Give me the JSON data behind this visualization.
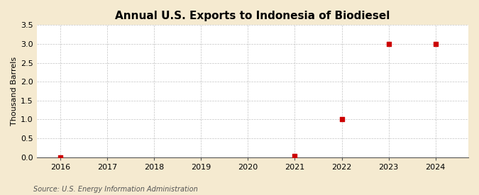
{
  "title": "Annual U.S. Exports to Indonesia of Biodiesel",
  "ylabel": "Thousand Barrels",
  "source": "Source: U.S. Energy Information Administration",
  "x": [
    2016,
    2021,
    2022,
    2023,
    2024
  ],
  "y": [
    0.0,
    0.026,
    1.0,
    3.0,
    3.0
  ],
  "xlim": [
    2015.5,
    2024.7
  ],
  "ylim": [
    0,
    3.5
  ],
  "yticks": [
    0.0,
    0.5,
    1.0,
    1.5,
    2.0,
    2.5,
    3.0,
    3.5
  ],
  "xticks": [
    2016,
    2017,
    2018,
    2019,
    2020,
    2021,
    2022,
    2023,
    2024
  ],
  "background_color": "#f5ead0",
  "plot_bg_color": "#ffffff",
  "marker_color": "#cc0000",
  "marker": "s",
  "marker_size": 4,
  "grid_color": "#aaaaaa",
  "title_fontsize": 11,
  "label_fontsize": 8,
  "tick_fontsize": 8,
  "source_fontsize": 7
}
